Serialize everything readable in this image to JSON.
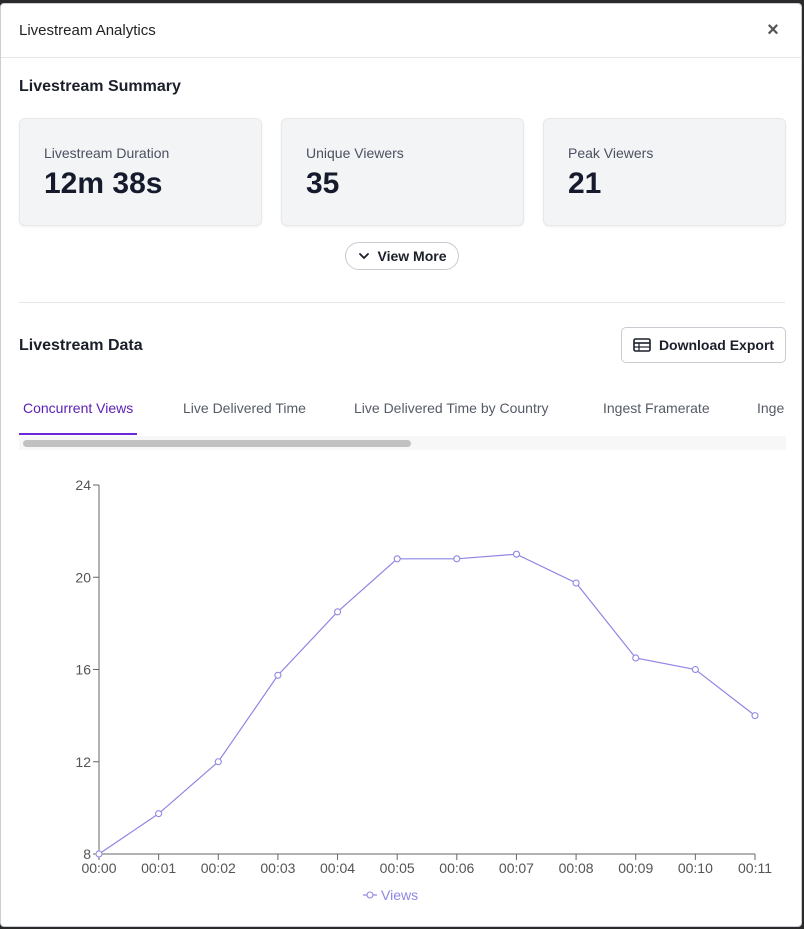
{
  "modal": {
    "title": "Livestream Analytics",
    "close_icon": "×"
  },
  "summary": {
    "title": "Livestream Summary",
    "cards": [
      {
        "label": "Livestream Duration",
        "value": "12m 38s"
      },
      {
        "label": "Unique Viewers",
        "value": "35"
      },
      {
        "label": "Peak Viewers",
        "value": "21"
      }
    ],
    "view_more_label": "View More"
  },
  "data_section": {
    "title": "Livestream Data",
    "download_label": "Download Export",
    "tabs": [
      {
        "label": "Concurrent Views",
        "active": true
      },
      {
        "label": "Live Delivered Time",
        "active": false
      },
      {
        "label": "Live Delivered Time by Country",
        "active": false
      },
      {
        "label": "Ingest Framerate",
        "active": false
      },
      {
        "label": "Inge",
        "active": false
      }
    ]
  },
  "colors": {
    "accent": "#6d28d9",
    "series": "#8f86e3"
  },
  "chart_data": {
    "type": "line",
    "x": [
      "00:00",
      "00:01",
      "00:02",
      "00:03",
      "00:04",
      "00:05",
      "00:06",
      "00:07",
      "00:08",
      "00:09",
      "00:10",
      "00:11"
    ],
    "series": [
      {
        "name": "Views",
        "values": [
          8,
          9.75,
          12,
          15.75,
          18.5,
          20.8,
          20.8,
          21,
          19.75,
          16.5,
          16,
          14
        ]
      }
    ],
    "ylim": [
      8,
      24
    ],
    "yticks": [
      8,
      12,
      16,
      20,
      24
    ],
    "grid": false,
    "legend": "bottom-center"
  }
}
